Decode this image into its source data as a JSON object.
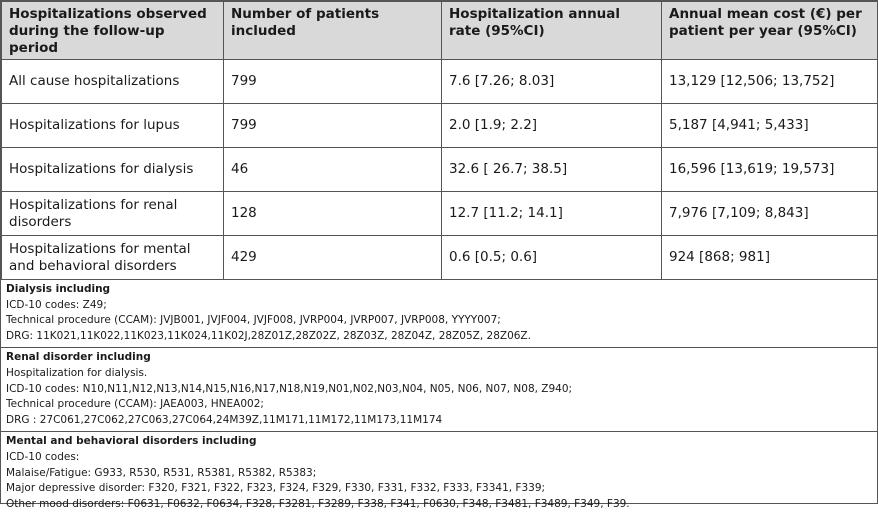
{
  "table": {
    "header": [
      "Hospitalizations observed during the follow-up period",
      "Number of patients included",
      "Hospitalization annual rate (95%CI)",
      "Annual mean cost (€) per patient per year (95%CI)"
    ],
    "rows": [
      [
        "All cause hospitalizations",
        "799",
        "7.6 [7.26; 8.03]",
        "13,129 [12,506; 13,752]"
      ],
      [
        "Hospitalizations for lupus",
        "799",
        "2.0 [1.9; 2.2]",
        "5,187 [4,941; 5,433]"
      ],
      [
        "Hospitalizations for dialysis",
        "46",
        "32.6 [ 26.7; 38.5]",
        "16,596 [13,619; 19,573]"
      ],
      [
        "Hospitalizations for renal disorders",
        "128",
        "12.7 [11.2; 14.1]",
        "7,976 [7,109; 8,843]"
      ],
      [
        "Hospitalizations for mental and behavioral disorders",
        "429",
        "0.6 [0.5; 0.6]",
        "924 [868; 981]"
      ]
    ]
  },
  "notes": [
    {
      "title": "Dialysis including",
      "lines": [
        "ICD-10 codes: Z49;",
        "Technical procedure (CCAM): JVJB001, JVJF004, JVJF008, JVRP004, JVRP007, JVRP008, YYYY007;",
        "DRG: 11K021,11K022,11K023,11K024,11K02J,28Z01Z,28Z02Z, 28Z03Z, 28Z04Z, 28Z05Z, 28Z06Z."
      ]
    },
    {
      "title": "Renal disorder including",
      "lines": [
        "Hospitalization for dialysis.",
        "ICD-10 codes: N10,N11,N12,N13,N14,N15,N16,N17,N18,N19,N01,N02,N03,N04, N05, N06, N07, N08, Z940;",
        "Technical procedure (CCAM): JAEA003, HNEA002;",
        "DRG : 27C061,27C062,27C063,27C064,24M39Z,11M171,11M172,11M173,11M174"
      ]
    },
    {
      "title": "Mental and behavioral disorders including",
      "lines": [
        "ICD-10 codes:",
        "Malaise/Fatigue: G933, R530, R531, R5381, R5382, R5383;",
        "Major depressive disorder: F320, F321, F322, F323, F324, F329, F330, F331, F332, F333, F3341, F339;",
        "Other mood disorders: F0631, F0632, F0634, F328, F3281, F3289, F338, F341, F0630, F348, F3481, F3489, F349, F39."
      ]
    }
  ]
}
